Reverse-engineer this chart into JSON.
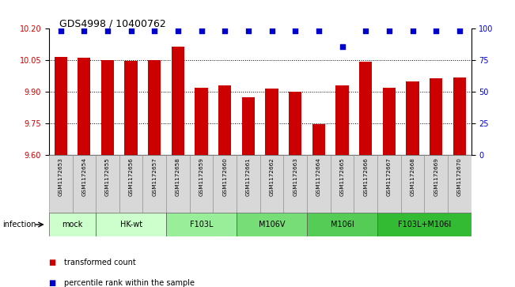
{
  "title": "GDS4998 / 10400762",
  "samples": [
    "GSM1172653",
    "GSM1172654",
    "GSM1172655",
    "GSM1172656",
    "GSM1172657",
    "GSM1172658",
    "GSM1172659",
    "GSM1172660",
    "GSM1172661",
    "GSM1172662",
    "GSM1172663",
    "GSM1172664",
    "GSM1172665",
    "GSM1172666",
    "GSM1172667",
    "GSM1172668",
    "GSM1172669",
    "GSM1172670"
  ],
  "bar_values": [
    10.065,
    10.062,
    10.05,
    10.047,
    10.052,
    10.115,
    9.92,
    9.93,
    9.875,
    9.915,
    9.9,
    9.745,
    9.93,
    10.045,
    9.92,
    9.95,
    9.965,
    9.97
  ],
  "percentile_values": [
    98,
    98,
    98,
    98,
    98,
    98,
    98,
    98,
    98,
    98,
    98,
    98,
    86,
    98,
    98,
    98,
    98,
    98
  ],
  "ylim_left": [
    9.6,
    10.2
  ],
  "ylim_right": [
    0,
    100
  ],
  "yticks_left": [
    9.6,
    9.75,
    9.9,
    10.05,
    10.2
  ],
  "yticks_right": [
    0,
    25,
    50,
    75,
    100
  ],
  "bar_color": "#CC0000",
  "dot_color": "#0000CC",
  "groups": [
    {
      "label": "mock",
      "indices": [
        0,
        1
      ],
      "color": "#ccffcc"
    },
    {
      "label": "HK-wt",
      "indices": [
        2,
        3,
        4
      ],
      "color": "#ccffcc"
    },
    {
      "label": "F103L",
      "indices": [
        5,
        6,
        7
      ],
      "color": "#99ee99"
    },
    {
      "label": "M106V",
      "indices": [
        8,
        9,
        10
      ],
      "color": "#77dd77"
    },
    {
      "label": "M106I",
      "indices": [
        11,
        12,
        13
      ],
      "color": "#55cc55"
    },
    {
      "label": "F103L+M106I",
      "indices": [
        14,
        15,
        16,
        17
      ],
      "color": "#33bb33"
    }
  ],
  "infection_label": "infection",
  "legend_items": [
    {
      "color": "#CC0000",
      "label": "transformed count"
    },
    {
      "color": "#0000CC",
      "label": "percentile rank within the sample"
    }
  ]
}
